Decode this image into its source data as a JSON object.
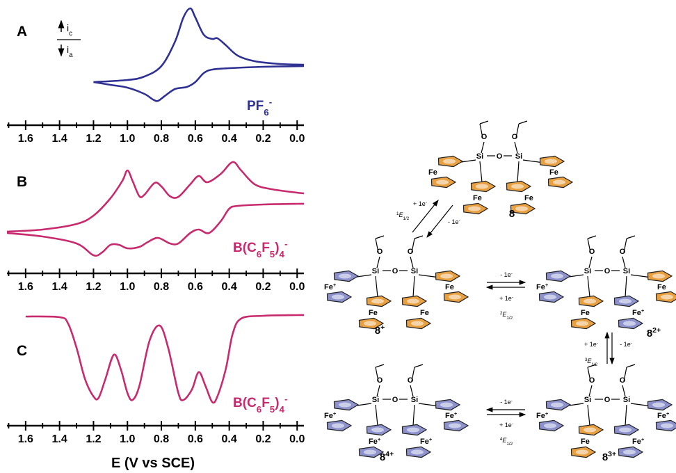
{
  "chart_data": [
    {
      "type": "line",
      "title": "A",
      "annotation": [
        {
          "text": "PF"
        },
        {
          "sub": "6"
        },
        {
          "sup": "-"
        }
      ],
      "current_labels": [
        [
          {
            "text": "i"
          },
          {
            "sub": "c"
          }
        ],
        [
          {
            "text": "i"
          },
          {
            "sub": "a"
          }
        ]
      ],
      "xlim": [
        1.71,
        -0.04
      ],
      "ylim": [
        0,
        145
      ],
      "xticks": [
        1.6,
        1.4,
        1.2,
        {
          "value": 1,
          "label": "1.0"
        },
        0.8,
        0.6,
        0.4,
        0.2,
        {
          "value": 0,
          "label": "0.0"
        }
      ],
      "xminorticks": [
        1.7,
        1.5,
        1.3,
        1.1,
        0.9,
        0.7,
        0.5,
        0.3,
        0.1
      ],
      "series": [
        {
          "color": "#2e3192",
          "x": [
            1.2,
            1.0,
            0.9,
            0.8,
            0.72,
            0.67,
            0.63,
            0.6,
            0.55,
            0.5,
            0.47,
            0.42,
            0.35,
            0.25,
            0.1,
            -0.04
          ],
          "values": [
            32,
            35,
            40,
            55,
            90,
            125,
            138,
            125,
            100,
            94,
            95,
            85,
            70,
            62,
            58,
            57
          ]
        },
        {
          "color": "#2e3192",
          "x": [
            1.2,
            1.1,
            1.0,
            0.9,
            0.85,
            0.82,
            0.78,
            0.72,
            0.65,
            0.6,
            0.55,
            0.5,
            0.4,
            0.2,
            -0.04
          ],
          "values": [
            32,
            28,
            24,
            15,
            7,
            5,
            12,
            22,
            25,
            32,
            45,
            50,
            52,
            54,
            55
          ]
        }
      ]
    },
    {
      "type": "line",
      "title": "B",
      "annotation": [
        {
          "text": "B(C"
        },
        {
          "sub": "6"
        },
        {
          "text": "F"
        },
        {
          "sub": "5"
        },
        {
          "text": ")"
        },
        {
          "sub": "4"
        },
        {
          "sup": "-"
        }
      ],
      "xlim": [
        1.71,
        -0.04
      ],
      "ylim": [
        0,
        150
      ],
      "xticks": [
        1.6,
        1.4,
        1.2,
        {
          "value": 1,
          "label": "1.0"
        },
        0.8,
        0.6,
        0.4,
        0.2,
        {
          "value": 0,
          "label": "0.0"
        }
      ],
      "xminorticks": [
        1.7,
        1.5,
        1.3,
        1.1,
        0.9,
        0.7,
        0.5,
        0.3,
        0.1
      ],
      "series": [
        {
          "color": "#c72a6d",
          "x": [
            1.71,
            1.5,
            1.3,
            1.2,
            1.1,
            1.03,
            1.0,
            0.97,
            0.93,
            0.9,
            0.84,
            0.8,
            0.75,
            0.7,
            0.63,
            0.58,
            0.53,
            0.45,
            0.38,
            0.33,
            0.25,
            0.15,
            0.0,
            -0.04
          ],
          "values": [
            42,
            45,
            53,
            65,
            90,
            115,
            130,
            115,
            93,
            95,
            112,
            107,
            93,
            92,
            110,
            122,
            113,
            125,
            142,
            130,
            110,
            103,
            98,
            97
          ]
        },
        {
          "color": "#c72a6d",
          "x": [
            1.71,
            1.5,
            1.3,
            1.2,
            1.15,
            1.1,
            1.05,
            1.0,
            0.93,
            0.88,
            0.82,
            0.75,
            0.7,
            0.63,
            0.58,
            0.52,
            0.45,
            0.4,
            0.35,
            0.2,
            0.0,
            -0.04
          ],
          "values": [
            40,
            35,
            25,
            8,
            12,
            23,
            23,
            18,
            20,
            27,
            33,
            25,
            25,
            40,
            45,
            40,
            57,
            75,
            79,
            81,
            82,
            82
          ]
        }
      ]
    },
    {
      "type": "line",
      "title": "C",
      "annotation": [
        {
          "text": "B(C"
        },
        {
          "sub": "6"
        },
        {
          "text": "F"
        },
        {
          "sub": "5"
        },
        {
          "text": ")"
        },
        {
          "sub": "4"
        },
        {
          "sup": "-"
        }
      ],
      "xlabel": "E (V vs SCE)",
      "xlim": [
        1.71,
        -0.04
      ],
      "ylim": [
        0,
        150
      ],
      "xticks": [
        1.6,
        1.4,
        1.2,
        {
          "value": 1,
          "label": "1.0"
        },
        0.8,
        0.6,
        0.4,
        0.2,
        {
          "value": 0,
          "label": "0.0"
        }
      ],
      "xminorticks": [
        1.7,
        1.5,
        1.3,
        1.1,
        0.9,
        0.7,
        0.5,
        0.3,
        0.1
      ],
      "series": [
        {
          "color": "#c72a6d",
          "x": [
            1.6,
            1.4,
            1.35,
            1.3,
            1.25,
            1.2,
            1.17,
            1.13,
            1.08,
            1.04,
            1.0,
            0.97,
            0.93,
            0.87,
            0.81,
            0.76,
            0.7,
            0.67,
            0.62,
            0.58,
            0.54,
            0.5,
            0.47,
            0.42,
            0.38,
            0.33,
            0.2,
            0.0,
            -0.04
          ],
          "values": [
            135,
            134,
            125,
            90,
            45,
            20,
            18,
            45,
            80,
            60,
            25,
            15,
            35,
            100,
            122,
            90,
            25,
            15,
            30,
            55,
            35,
            12,
            20,
            60,
            110,
            132,
            136,
            137,
            137
          ]
        }
      ]
    }
  ],
  "scheme": {
    "molecules": [
      {
        "label": [
          {
            "text": "8"
          }
        ],
        "atoms": [
          "O",
          "O",
          "Si",
          "O",
          "Si"
        ],
        "irons": [
          [
            {
              "text": "Fe"
            }
          ],
          [
            {
              "text": "Fe"
            }
          ],
          [
            {
              "text": "Fe"
            }
          ],
          [
            {
              "text": "Fe"
            }
          ]
        ],
        "ring_colors": [
          "#e8a040",
          "#e8a040",
          "#e8a040",
          "#e8a040"
        ]
      },
      {
        "label": [
          {
            "text": "8"
          },
          {
            "sup": "+"
          }
        ],
        "atoms": [
          "O",
          "O",
          "Si",
          "O",
          "Si"
        ],
        "irons": [
          [
            {
              "text": "Fe"
            },
            {
              "sup": "+"
            }
          ],
          [
            {
              "text": "Fe"
            }
          ],
          [
            {
              "text": "Fe"
            }
          ],
          [
            {
              "text": "Fe"
            }
          ]
        ],
        "ring_colors": [
          "#8d92cc",
          "#e8a040",
          "#e8a040",
          "#e8a040"
        ]
      },
      {
        "label": [
          {
            "text": "8"
          },
          {
            "sup": "2+"
          }
        ],
        "atoms": [
          "O",
          "O",
          "Si",
          "O",
          "Si"
        ],
        "irons": [
          [
            {
              "text": "Fe"
            },
            {
              "sup": "+"
            }
          ],
          [
            {
              "text": "Fe"
            }
          ],
          [
            {
              "text": "Fe"
            },
            {
              "sup": "+"
            }
          ],
          [
            {
              "text": "Fe"
            }
          ]
        ],
        "ring_colors": [
          "#8d92cc",
          "#e8a040",
          "#8d92cc",
          "#e8a040"
        ]
      },
      {
        "label": [
          {
            "text": "8"
          },
          {
            "sup": "3+"
          }
        ],
        "atoms": [
          "O",
          "O",
          "Si",
          "O",
          "Si"
        ],
        "irons": [
          [
            {
              "text": "Fe"
            },
            {
              "sup": "+"
            }
          ],
          [
            {
              "text": "Fe"
            }
          ],
          [
            {
              "text": "Fe"
            },
            {
              "sup": "+"
            }
          ],
          [
            {
              "text": "Fe"
            },
            {
              "sup": "+"
            }
          ]
        ],
        "ring_colors": [
          "#8d92cc",
          "#e8a040",
          "#8d92cc",
          "#8d92cc"
        ]
      },
      {
        "label": [
          {
            "text": "8"
          },
          {
            "sup": "4+"
          }
        ],
        "atoms": [
          "O",
          "O",
          "Si",
          "O",
          "Si"
        ],
        "irons": [
          [
            {
              "text": "Fe"
            },
            {
              "sup": "+"
            }
          ],
          [
            {
              "text": "Fe"
            },
            {
              "sup": "+"
            }
          ],
          [
            {
              "text": "Fe"
            },
            {
              "sup": "+"
            }
          ],
          [
            {
              "text": "Fe"
            },
            {
              "sup": "+"
            }
          ]
        ],
        "ring_colors": [
          "#8d92cc",
          "#8d92cc",
          "#8d92cc",
          "#8d92cc"
        ]
      }
    ],
    "steps": [
      {
        "labels": [
          [
            {
              "text": "+ 1e"
            },
            {
              "sup": "-"
            }
          ],
          [
            {
              "text": "- 1e"
            },
            {
              "sup": "-"
            }
          ],
          [
            {
              "sup": "1"
            },
            {
              "italic": "E"
            },
            {
              "sub": "1/2"
            }
          ]
        ]
      },
      {
        "labels": [
          [
            {
              "text": "- 1e"
            },
            {
              "sup": "-"
            }
          ],
          [
            {
              "text": "+ 1e"
            },
            {
              "sup": "-"
            }
          ],
          [
            {
              "sup": "2"
            },
            {
              "italic": "E"
            },
            {
              "sub": "1/2"
            }
          ]
        ]
      },
      {
        "labels": [
          [
            {
              "text": "+ 1e"
            },
            {
              "sup": "-"
            }
          ],
          [
            {
              "text": "- 1e"
            },
            {
              "sup": "-"
            }
          ],
          [
            {
              "sup": "3"
            },
            {
              "italic": "E"
            },
            {
              "sub": "1/2"
            }
          ]
        ]
      },
      {
        "labels": [
          [
            {
              "text": "- 1e"
            },
            {
              "sup": "-"
            }
          ],
          [
            {
              "text": "+ 1e"
            },
            {
              "sup": "-"
            }
          ],
          [
            {
              "sup": "4"
            },
            {
              "italic": "E"
            },
            {
              "sub": "1/2"
            }
          ]
        ]
      }
    ]
  }
}
